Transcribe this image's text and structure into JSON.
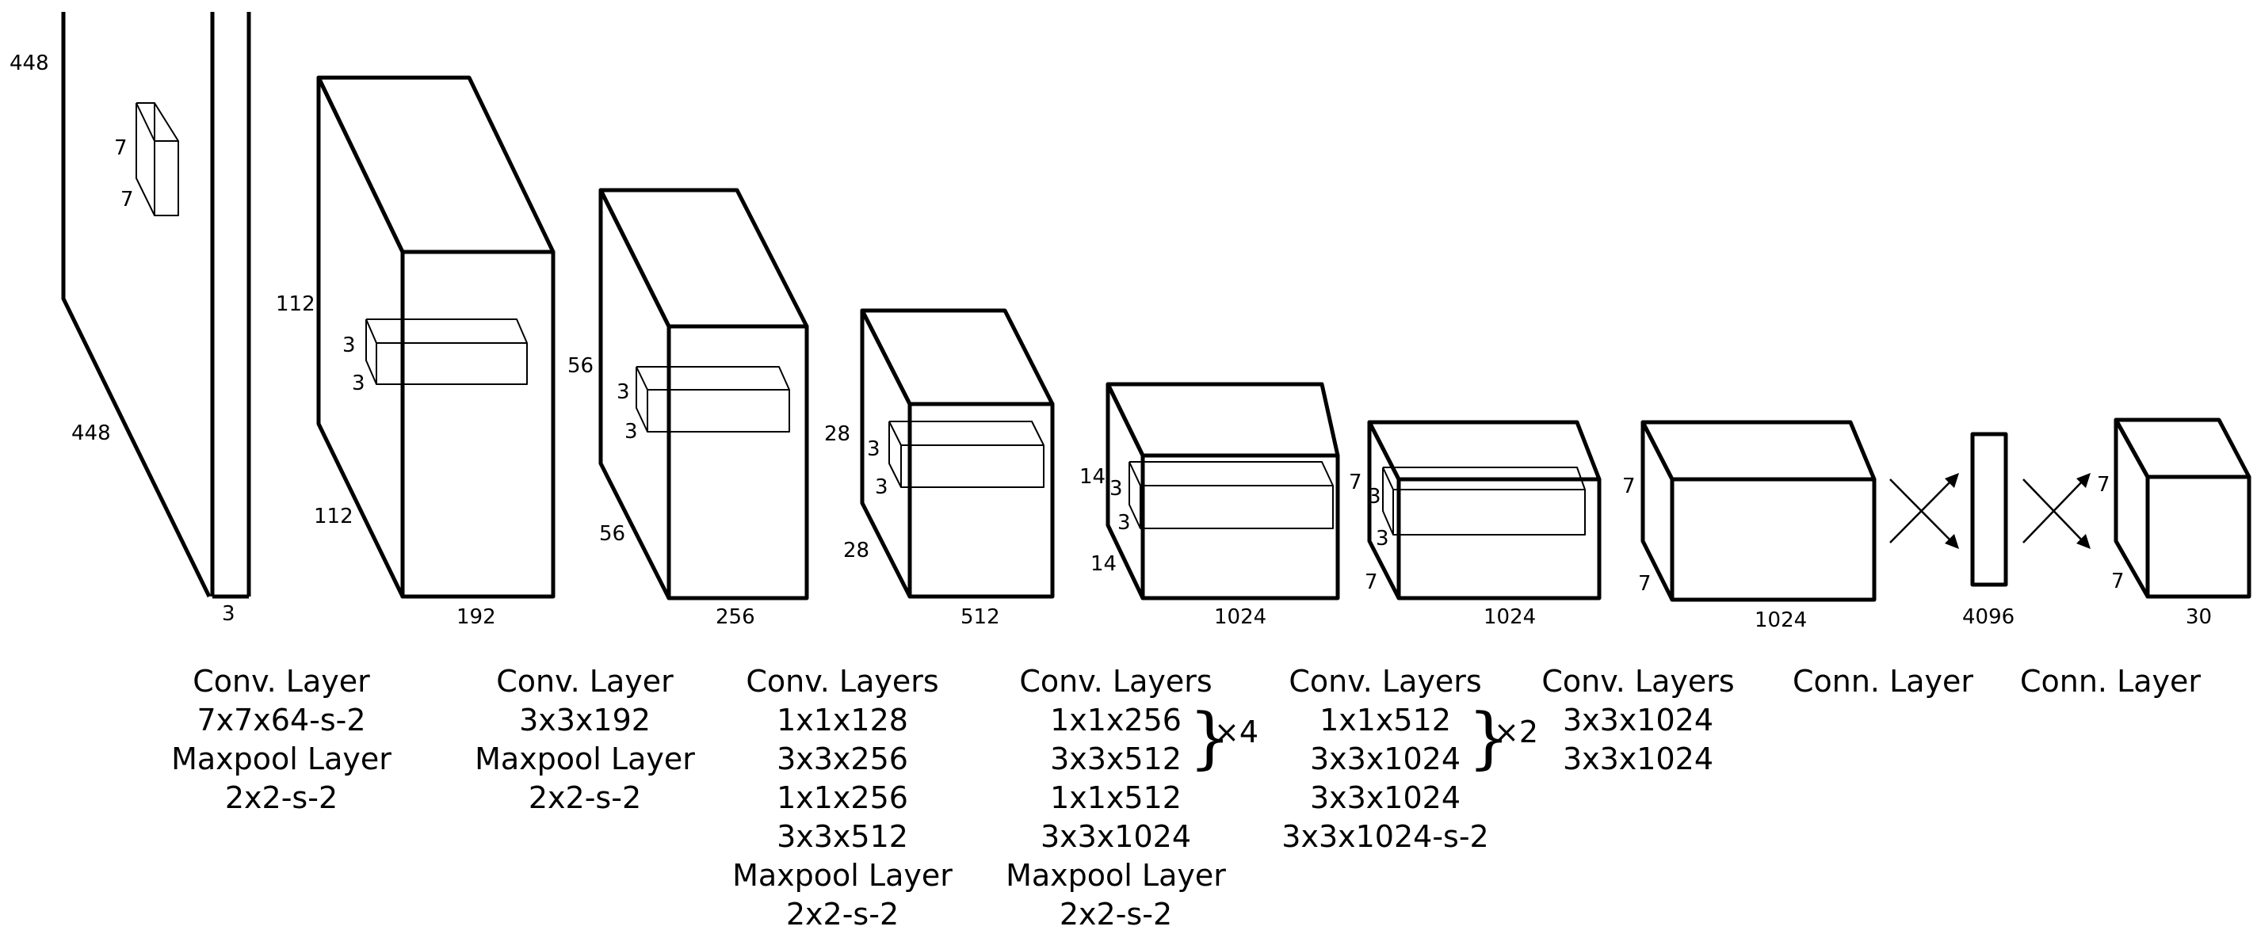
{
  "blocks": [
    {
      "id": "input",
      "width_label": "448",
      "height_label": "448",
      "depth_label": "3",
      "kernel_labels": [
        "7",
        "7"
      ],
      "caption": [
        "Conv. Layer",
        "7x7x64-s-2",
        "Maxpool Layer",
        "2x2-s-2"
      ]
    },
    {
      "id": "b1",
      "width_label": "112",
      "height_label": "112",
      "depth_label": "192",
      "kernel_labels": [
        "3",
        "3"
      ],
      "caption": [
        "Conv. Layer",
        "3x3x192",
        "Maxpool Layer",
        "2x2-s-2"
      ]
    },
    {
      "id": "b2",
      "width_label": "56",
      "height_label": "56",
      "depth_label": "256",
      "kernel_labels": [
        "3",
        "3"
      ],
      "caption": [
        "Conv. Layers",
        "1x1x128",
        "3x3x256",
        "1x1x256",
        "3x3x512",
        "Maxpool Layer",
        "2x2-s-2"
      ]
    },
    {
      "id": "b3",
      "width_label": "28",
      "height_label": "28",
      "depth_label": "512",
      "kernel_labels": [
        "3",
        "3"
      ],
      "caption": [
        "Conv. Layers",
        "1x1x256",
        "3x3x512",
        "1x1x512",
        "3x3x1024",
        "Maxpool Layer",
        "2x2-s-2"
      ],
      "repeat": {
        "text": "×4",
        "lines": [
          1,
          2
        ]
      }
    },
    {
      "id": "b4",
      "width_label": "14",
      "height_label": "14",
      "depth_label": "1024",
      "kernel_labels": [
        "3",
        "3"
      ],
      "caption": [
        "Conv. Layers",
        "1x1x512",
        "3x3x1024",
        "3x3x1024",
        "3x3x1024-s-2"
      ],
      "repeat": {
        "text": "×2",
        "lines": [
          1,
          2
        ]
      }
    },
    {
      "id": "b5",
      "width_label": "7",
      "height_label": "7",
      "depth_label": "1024",
      "kernel_labels": [
        "3",
        "3"
      ],
      "caption": [
        "Conv. Layers",
        "3x3x1024",
        "3x3x1024"
      ]
    },
    {
      "id": "b6",
      "width_label": "7",
      "height_label": "7",
      "depth_label": "1024",
      "caption": [
        "Conn. Layer"
      ]
    },
    {
      "id": "fc",
      "depth_label": "4096",
      "caption": [
        "Conn. Layer"
      ]
    },
    {
      "id": "out",
      "width_label": "7",
      "height_label": "7",
      "depth_label": "30"
    }
  ]
}
